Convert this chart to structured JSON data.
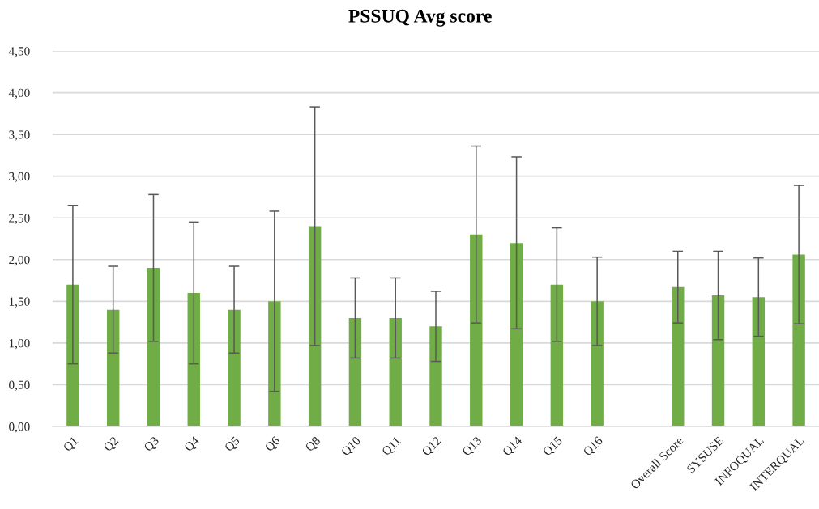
{
  "chart_data": {
    "type": "bar",
    "title": "PSSUQ Avg score",
    "categories": [
      "Q1",
      "Q2",
      "Q3",
      "Q4",
      "Q5",
      "Q6",
      "Q8",
      "Q10",
      "Q11",
      "Q12",
      "Q13",
      "Q14",
      "Q15",
      "Q16",
      null,
      "Overall Score",
      "SYSUSE",
      "INFOQUAL",
      "INTERQUAL"
    ],
    "values": [
      1.7,
      1.4,
      1.9,
      1.6,
      1.4,
      1.5,
      2.4,
      1.3,
      1.3,
      1.2,
      2.3,
      2.2,
      1.7,
      1.5,
      null,
      1.67,
      1.57,
      1.55,
      2.06
    ],
    "errors": [
      0.95,
      0.52,
      0.88,
      0.85,
      0.52,
      1.08,
      1.43,
      0.48,
      0.48,
      0.42,
      1.06,
      1.03,
      0.68,
      0.53,
      null,
      0.43,
      0.53,
      0.47,
      0.83
    ],
    "color": "#70ad47",
    "ylim": [
      0,
      4.5
    ],
    "yticks": [
      {
        "value": 0,
        "label": "0,00"
      },
      {
        "value": 0.5,
        "label": "0,50"
      },
      {
        "value": 1,
        "label": "1,00"
      },
      {
        "value": 1.5,
        "label": "1,50"
      },
      {
        "value": 2,
        "label": "2,00"
      },
      {
        "value": 2.5,
        "label": "2,50"
      },
      {
        "value": 3,
        "label": "3,00"
      },
      {
        "value": 3.5,
        "label": "3,50"
      },
      {
        "value": 4,
        "label": "4,00"
      },
      {
        "value": 4.5,
        "label": "4,50"
      }
    ],
    "grid": "y"
  }
}
